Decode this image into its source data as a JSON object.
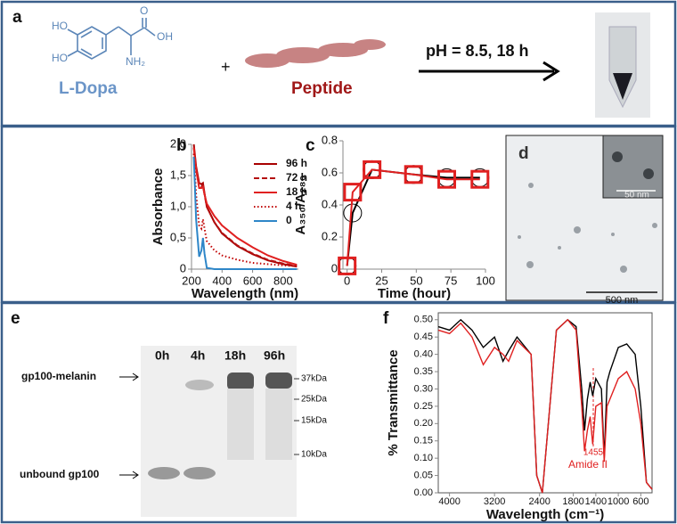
{
  "panel_a": {
    "label": "a",
    "atoms": [
      "HO",
      "HO",
      "O",
      "OH",
      "NH₂"
    ],
    "reactant_1": "L-Dopa",
    "plus": "+",
    "reactant_2": "Peptide",
    "condition": "pH = 8.5, 18 h"
  },
  "chart_data": [
    {
      "type": "line",
      "label": "b",
      "xlabel": "Wavelength (nm)",
      "ylabel": "Absorbance",
      "xlim": [
        200,
        900
      ],
      "xticks": [
        200,
        400,
        600,
        800
      ],
      "ylim": [
        0,
        2.0
      ],
      "yticks": [
        0,
        {
          "value": 0.5,
          "label": "0,5"
        },
        {
          "value": 1.0,
          "label": "1,0"
        },
        {
          "value": 1.5,
          "label": "1,5"
        },
        {
          "value": 2.0,
          "label": "2,0"
        }
      ],
      "x": [
        215,
        230,
        250,
        265,
        275,
        285,
        300,
        350,
        400,
        500,
        600,
        700,
        800,
        890
      ],
      "series": [
        {
          "name": "96 h",
          "color": "#a80000",
          "dash": "solid",
          "values": [
            2.0,
            1.65,
            1.38,
            1.36,
            1.38,
            1.22,
            1.0,
            0.75,
            0.57,
            0.37,
            0.24,
            0.14,
            0.08,
            0.04
          ]
        },
        {
          "name": "72 h",
          "color": "#b41010",
          "dash": "dashed",
          "values": [
            1.95,
            1.6,
            1.35,
            1.32,
            1.35,
            1.2,
            1.0,
            0.75,
            0.58,
            0.38,
            0.25,
            0.15,
            0.09,
            0.05
          ]
        },
        {
          "name": "18 h",
          "color": "#e02020",
          "dash": "solid",
          "values": [
            1.95,
            1.6,
            1.3,
            1.3,
            1.32,
            1.2,
            1.05,
            0.85,
            0.7,
            0.5,
            0.35,
            0.22,
            0.13,
            0.07
          ]
        },
        {
          "name": "4 h",
          "color": "#c00000",
          "dash": "dotted",
          "values": [
            1.85,
            1.2,
            0.7,
            0.65,
            0.8,
            0.65,
            0.45,
            0.3,
            0.22,
            0.15,
            0.1,
            0.08,
            0.06,
            0.05
          ]
        },
        {
          "name": "0",
          "color": "#2e86c8",
          "dash": "solid",
          "values": [
            1.8,
            0.8,
            0.2,
            0.3,
            0.5,
            0.25,
            0.02,
            0,
            0,
            0,
            0,
            0,
            0,
            0
          ]
        }
      ]
    },
    {
      "type": "line",
      "label": "c",
      "xlabel": "Time (hour)",
      "ylabel": "A₃₅₀/A₂₈₀",
      "xlim": [
        -3,
        100
      ],
      "xticks": [
        0,
        25,
        50,
        75,
        100
      ],
      "ylim": [
        0,
        0.8
      ],
      "yticks": [
        0,
        0.2,
        0.4,
        0.6,
        0.8
      ],
      "x": [
        0,
        4,
        18,
        48,
        72,
        96
      ],
      "series": [
        {
          "color": "#000000",
          "marker": "circle",
          "values": [
            0.02,
            0.35,
            0.62,
            0.59,
            0.57,
            0.57
          ]
        },
        {
          "color": "#e02020",
          "marker": "square",
          "values": [
            0.02,
            0.48,
            0.62,
            0.59,
            0.56,
            0.56
          ]
        }
      ]
    },
    {
      "type": "line",
      "label": "f",
      "xlabel": "Wavelength (cm⁻¹)",
      "ylabel": "% Transmittance",
      "xlim": [
        4200,
        400
      ],
      "xticks": [
        4000,
        3200,
        2400,
        1800,
        1400,
        1000,
        600
      ],
      "ylim": [
        0,
        0.52
      ],
      "yticks": [
        {
          "value": 0,
          "label": "0.00"
        },
        {
          "value": 0.05,
          "label": "0.05"
        },
        {
          "value": 0.1,
          "label": "0.10"
        },
        {
          "value": 0.15,
          "label": "0.15"
        },
        {
          "value": 0.2,
          "label": "0.20"
        },
        {
          "value": 0.25,
          "label": "0.25"
        },
        {
          "value": 0.3,
          "label": "0.30"
        },
        {
          "value": 0.35,
          "label": "0.35"
        },
        {
          "value": 0.4,
          "label": "0.40"
        },
        {
          "value": 0.45,
          "label": "0.45"
        },
        {
          "value": 0.5,
          "label": "0.50"
        }
      ],
      "annotations": [
        "1455",
        "Amide II"
      ],
      "x": [
        4200,
        4000,
        3800,
        3600,
        3400,
        3200,
        3050,
        2950,
        2800,
        2550,
        2450,
        2350,
        2100,
        1900,
        1750,
        1650,
        1600,
        1550,
        1500,
        1455,
        1400,
        1300,
        1250,
        1200,
        1150,
        1000,
        850,
        700,
        600,
        500,
        400
      ],
      "series": [
        {
          "color": "#000000",
          "values": [
            0.48,
            0.47,
            0.5,
            0.47,
            0.42,
            0.45,
            0.38,
            0.41,
            0.45,
            0.4,
            0.05,
            0.0,
            0.47,
            0.5,
            0.48,
            0.3,
            0.18,
            0.27,
            0.32,
            0.28,
            0.33,
            0.3,
            0.1,
            0.32,
            0.35,
            0.42,
            0.43,
            0.4,
            0.25,
            0.03,
            0.01
          ]
        },
        {
          "color": "#e02020",
          "values": [
            0.47,
            0.46,
            0.49,
            0.45,
            0.37,
            0.42,
            0.4,
            0.38,
            0.44,
            0.4,
            0.05,
            0.0,
            0.47,
            0.5,
            0.47,
            0.25,
            0.12,
            0.18,
            0.22,
            0.14,
            0.25,
            0.26,
            0.09,
            0.25,
            0.27,
            0.33,
            0.35,
            0.3,
            0.2,
            0.03,
            0.01
          ]
        }
      ]
    }
  ],
  "panel_d": {
    "label": "d",
    "scale_bar": "500 nm",
    "inset_scale_bar": "50 nm"
  },
  "panel_e": {
    "label": "e",
    "lanes": [
      "0h",
      "4h",
      "18h",
      "96h"
    ],
    "markers": [
      "37kDa",
      "25kDa",
      "15kDa",
      "10kDa"
    ],
    "bands": [
      "gp100-melanin",
      "unbound gp100"
    ]
  }
}
